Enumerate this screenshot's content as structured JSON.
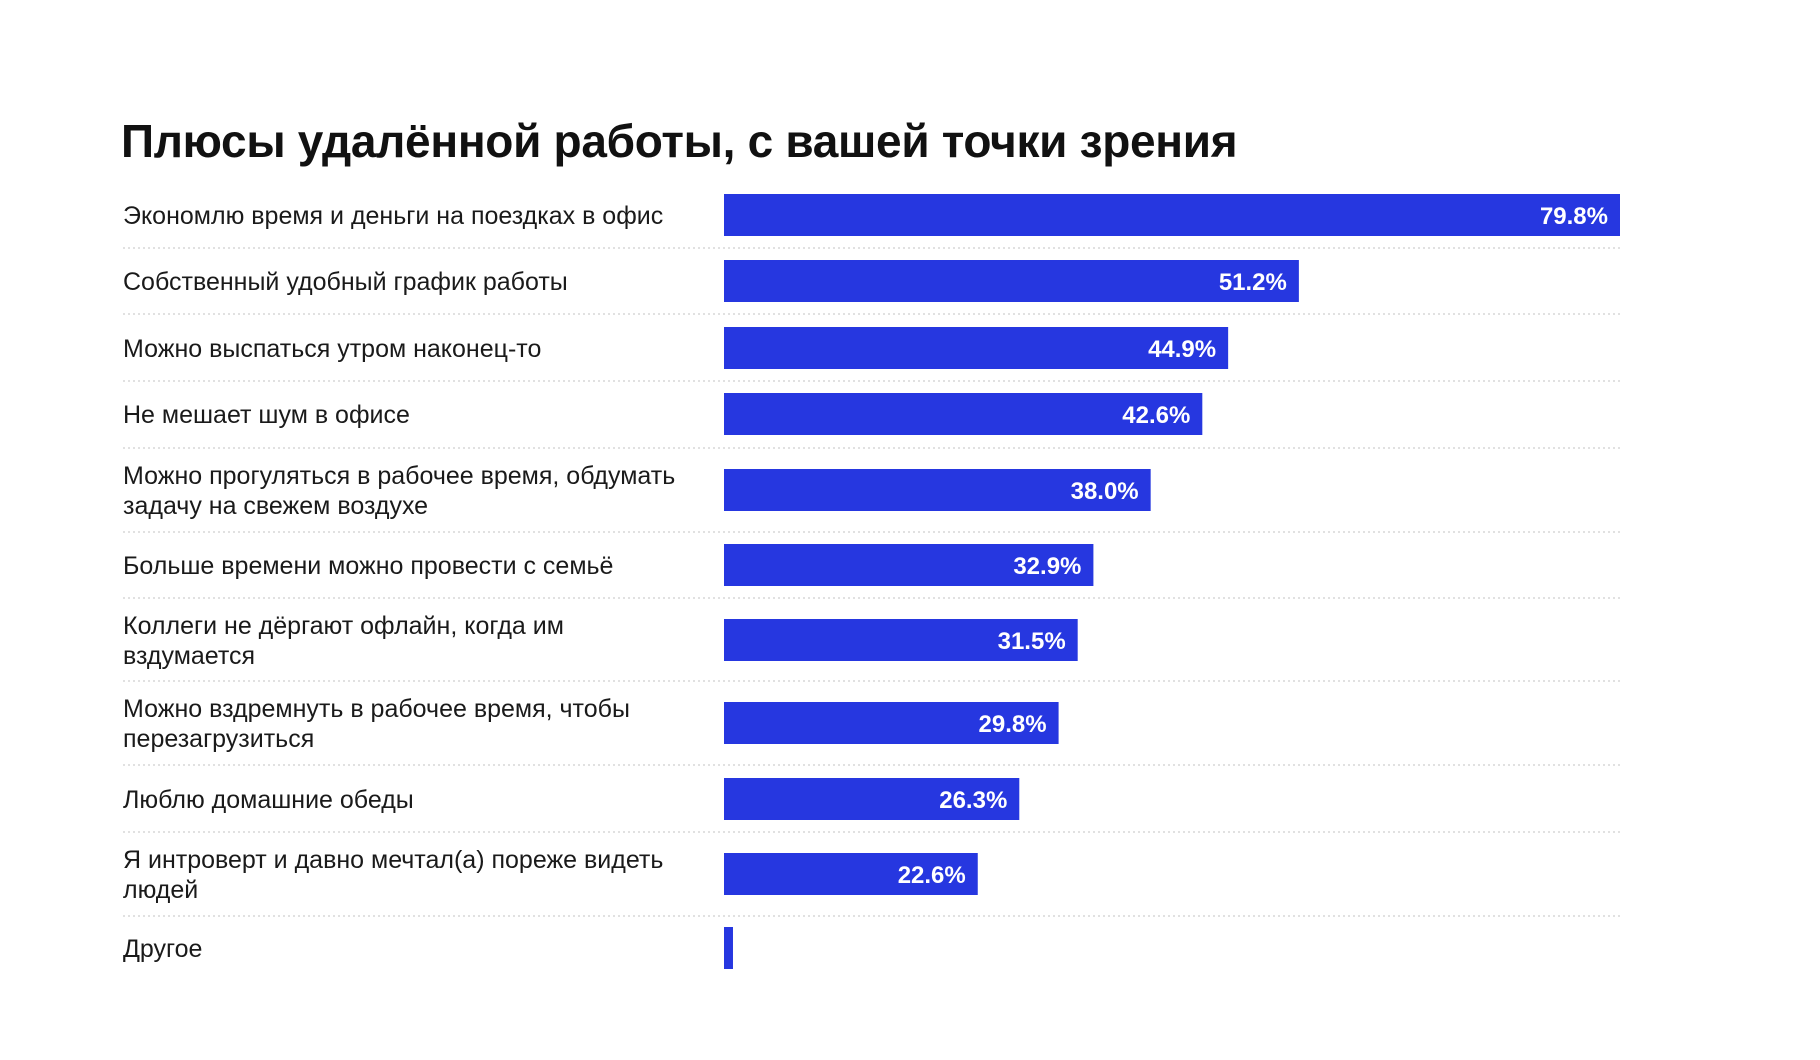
{
  "chart_data": {
    "type": "bar",
    "orientation": "horizontal",
    "title": "Плюсы удалённой работы, с вашей точки зрения",
    "categories": [
      [
        "Экономлю время и деньги на поездках в офис"
      ],
      [
        "Собственный удобный график работы"
      ],
      [
        "Можно выспаться утром наконец-то"
      ],
      [
        "Не мешает шум в офисе"
      ],
      [
        "Можно прогуляться в рабочее время, обдумать",
        "задачу на свежем воздухе"
      ],
      [
        "Больше времени можно провести с семьё"
      ],
      [
        "Коллеги не дёргают офлайн, когда им",
        "вздумается"
      ],
      [
        "Можно вздремнуть в рабочее время, чтобы",
        "перезагрузиться"
      ],
      [
        "Люблю домашние обеды"
      ],
      [
        "Я интроверт и давно мечтал(а) пореже видеть",
        "людей"
      ],
      [
        "Другое"
      ]
    ],
    "values": [
      79.8,
      51.2,
      44.9,
      42.6,
      38.0,
      32.9,
      31.5,
      29.8,
      26.3,
      22.6,
      0.8
    ],
    "value_labels": [
      "79.8%",
      "51.2%",
      "44.9%",
      "42.6%",
      "38.0%",
      "32.9%",
      "31.5%",
      "29.8%",
      "26.3%",
      "22.6%",
      ""
    ],
    "xlim": [
      0,
      79.8
    ],
    "grid": false,
    "legend": "none",
    "bar_color": "#2637E0",
    "separator_color": "#d7d7d7"
  }
}
